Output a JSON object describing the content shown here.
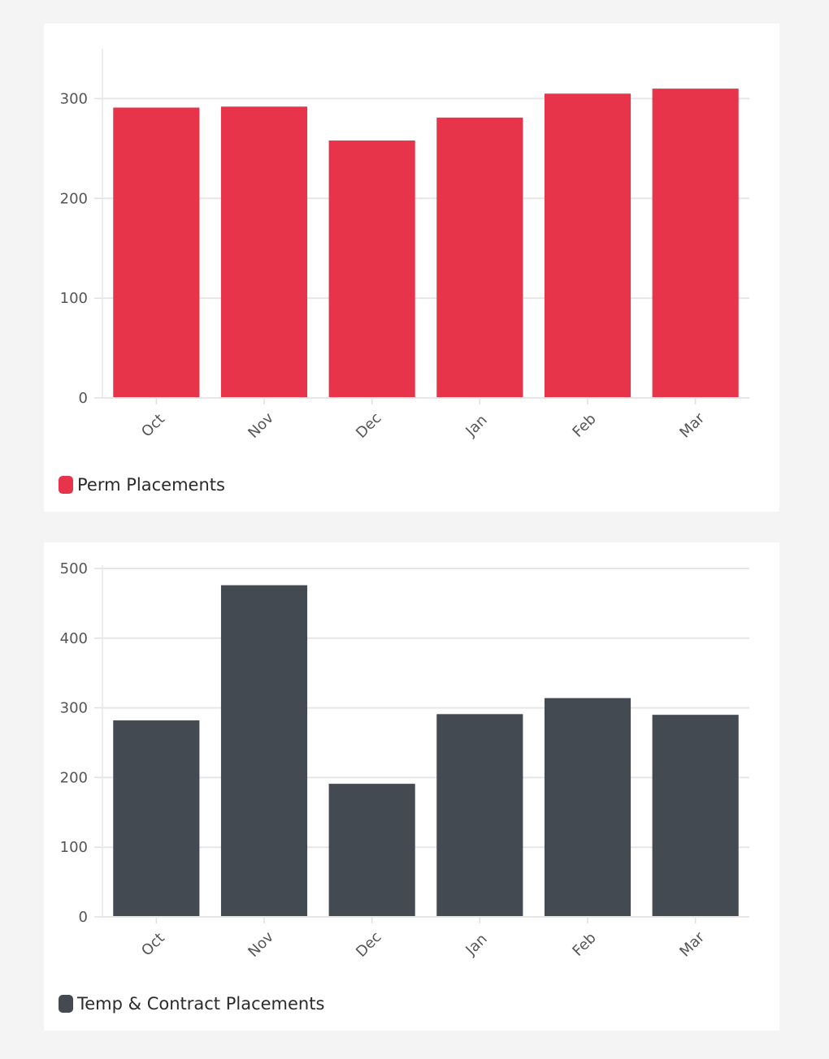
{
  "chart_data": [
    {
      "type": "bar",
      "categories": [
        "Oct",
        "Nov",
        "Dec",
        "Jan",
        "Feb",
        "Mar"
      ],
      "series": [
        {
          "name": "Perm Placements",
          "values": [
            291,
            292,
            258,
            281,
            305,
            310
          ],
          "color": "#e8344a"
        }
      ],
      "yticks": [
        0,
        100,
        200,
        300
      ],
      "ylim": [
        0,
        350
      ],
      "grid": true,
      "legend": "bottom-left",
      "xlabel": "",
      "ylabel": ""
    },
    {
      "type": "bar",
      "categories": [
        "Oct",
        "Nov",
        "Dec",
        "Jan",
        "Feb",
        "Mar"
      ],
      "series": [
        {
          "name": "Temp & Contract Placements",
          "values": [
            282,
            476,
            191,
            291,
            314,
            290
          ],
          "color": "#444a52"
        }
      ],
      "yticks": [
        0,
        100,
        200,
        300,
        400,
        500
      ],
      "ylim": [
        0,
        500
      ],
      "grid": true,
      "legend": "bottom-left",
      "xlabel": "",
      "ylabel": ""
    }
  ]
}
